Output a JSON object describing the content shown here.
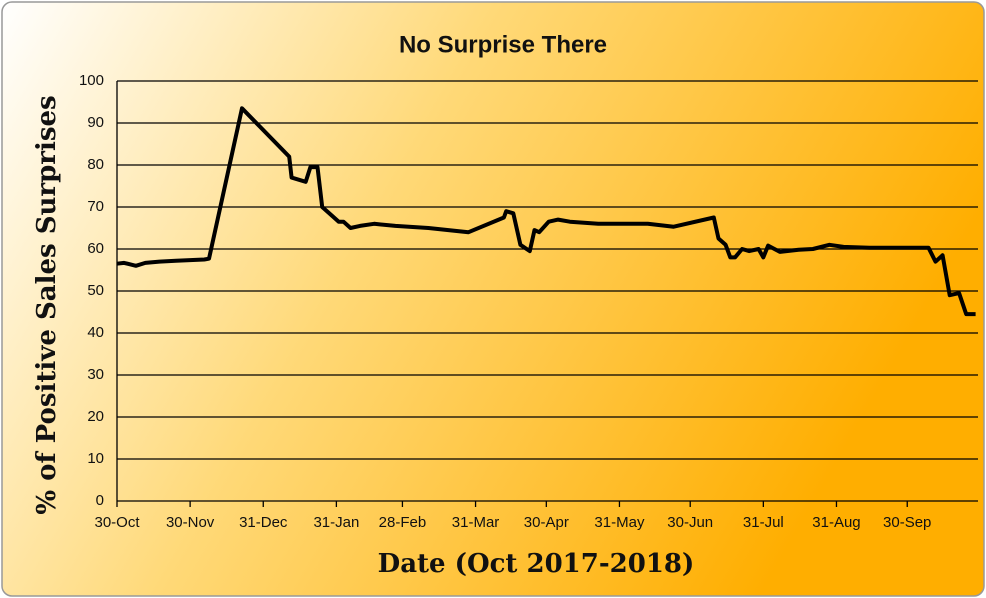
{
  "chart_data": {
    "type": "line",
    "title": "No Surprise There",
    "xlabel": "Date (Oct 2017-2018)",
    "ylabel": "% of Positive Sales Surprises",
    "x": [
      0,
      3,
      8,
      12,
      18,
      25,
      37,
      39,
      53,
      73,
      74,
      80,
      82,
      85,
      87,
      92,
      94,
      96,
      99,
      103,
      109,
      118,
      132,
      149,
      164,
      165,
      168,
      171,
      175,
      177,
      179,
      183,
      187,
      192,
      204,
      225,
      236,
      253,
      255,
      258,
      260,
      262,
      265,
      268,
      272,
      274,
      276,
      281,
      289,
      295,
      302,
      308,
      319,
      344,
      347,
      350,
      353,
      357,
      360,
      364
    ],
    "values": [
      56.5,
      56.7,
      56,
      56.7,
      57,
      57.2,
      57.5,
      57.7,
      93.5,
      82,
      77,
      76,
      79.5,
      79.5,
      70,
      67.5,
      66.5,
      66.5,
      65,
      65.5,
      66,
      65.5,
      65,
      64,
      67.5,
      69,
      68.5,
      61,
      59.5,
      64.5,
      64,
      66.5,
      67,
      66.5,
      66,
      66,
      65.3,
      67.5,
      62.5,
      61,
      58,
      58,
      60,
      59.5,
      60,
      58,
      60.8,
      59.3,
      59.8,
      60,
      61,
      60.5,
      60.3,
      60.3,
      57,
      58.5,
      49,
      49.5,
      44.5,
      44.5
    ],
    "color": "#000000",
    "xlim": [
      0,
      365
    ],
    "xticks": [
      {
        "value": 0,
        "label": "30-Oct"
      },
      {
        "value": 31,
        "label": "30-Nov"
      },
      {
        "value": 62,
        "label": "31-Dec"
      },
      {
        "value": 93,
        "label": "31-Jan"
      },
      {
        "value": 121,
        "label": "28-Feb"
      },
      {
        "value": 152,
        "label": "31-Mar"
      },
      {
        "value": 182,
        "label": "30-Apr"
      },
      {
        "value": 213,
        "label": "31-May"
      },
      {
        "value": 243,
        "label": "30-Jun"
      },
      {
        "value": 274,
        "label": "31-Jul"
      },
      {
        "value": 305,
        "label": "31-Aug"
      },
      {
        "value": 335,
        "label": "30-Sep"
      }
    ],
    "ylim": [
      0,
      100
    ],
    "yticks": [
      0,
      10,
      20,
      30,
      40,
      50,
      60,
      70,
      80,
      90,
      100
    ],
    "grid": true
  }
}
